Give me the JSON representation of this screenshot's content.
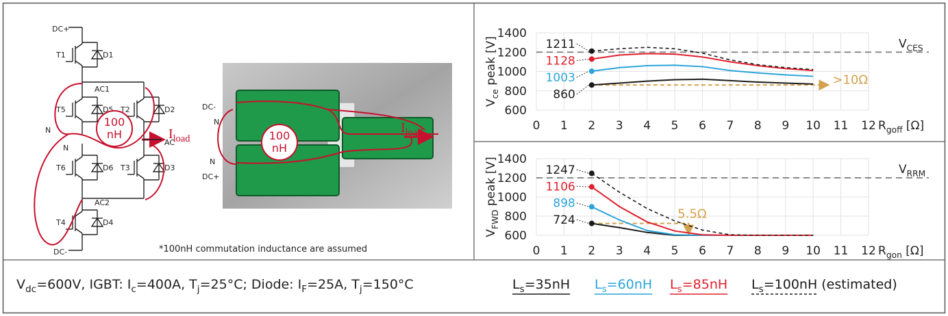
{
  "circuit": {
    "labels": [
      "DC+",
      "T1",
      "D1",
      "AC1",
      "T5",
      "D5",
      "T2",
      "D2",
      "N",
      "N",
      "T6",
      "D6",
      "T3",
      "D3",
      "AC2",
      "T4",
      "D4",
      "DC-",
      "AC"
    ],
    "inductance": [
      "100",
      "nH"
    ],
    "current": "Iload"
  },
  "photo": {
    "labels": [
      "DC-",
      "N",
      "N",
      "DC+"
    ],
    "inductance": [
      "100",
      "nH"
    ],
    "current": "Iload"
  },
  "note": "*100nH commutation inductance are assumed",
  "caption": "Vdc=600V, IGBT: Ic=400A, Tj=25°C; Diode: IF=25A, Tj=150°C",
  "chart_data": [
    {
      "type": "line",
      "y_label": "Vce peak [V]",
      "x_label": "Rgoff [Ω]",
      "xlim": [
        0,
        12
      ],
      "xticks": [
        0,
        1,
        2,
        3,
        4,
        5,
        6,
        7,
        8,
        9,
        10,
        11,
        12
      ],
      "ylim": [
        600,
        1400
      ],
      "yticks": [
        600,
        800,
        1000,
        1200,
        1400
      ],
      "grid": true,
      "reference": {
        "value": 1200,
        "label": "VCES"
      },
      "annotation": {
        "text": ">10Ω",
        "x": [
          2,
          10.5
        ],
        "y": 860
      },
      "x": [
        2,
        3,
        4,
        5,
        6,
        7,
        8,
        9,
        10
      ],
      "series": [
        {
          "name": "Ls=35nH",
          "color": "#1a1a1a",
          "values": [
            860,
            880,
            900,
            915,
            920,
            905,
            890,
            880,
            870
          ]
        },
        {
          "name": "Ls=60nH",
          "color": "#2aa4da",
          "values": [
            1003,
            1040,
            1060,
            1065,
            1050,
            1010,
            985,
            965,
            950
          ]
        },
        {
          "name": "Ls=85nH",
          "color": "#e11f2c",
          "values": [
            1128,
            1170,
            1185,
            1180,
            1150,
            1100,
            1060,
            1030,
            1010
          ]
        },
        {
          "name": "Ls=100nH (estimated)",
          "color": "#1a1a1a",
          "dashed": true,
          "values": [
            1211,
            1235,
            1250,
            1235,
            1190,
            1120,
            1070,
            1040,
            1020
          ]
        }
      ]
    },
    {
      "type": "line",
      "y_label": "VFWD peak [V]",
      "x_label": "Rgon [Ω]",
      "xlim": [
        0,
        12
      ],
      "xticks": [
        0,
        1,
        2,
        3,
        4,
        5,
        6,
        7,
        8,
        9,
        10,
        11,
        12
      ],
      "ylim": [
        600,
        1400
      ],
      "yticks": [
        600,
        800,
        1000,
        1200,
        1400
      ],
      "grid": true,
      "reference": {
        "value": 1200,
        "label": "VRRM"
      },
      "annotation": {
        "text": "5.5Ω",
        "x": [
          2,
          5.5
        ],
        "y": 724
      },
      "x": [
        2,
        3,
        4,
        5,
        6,
        7,
        8,
        9,
        10
      ],
      "series": [
        {
          "color": "#1a1a1a",
          "values": [
            724,
            680,
            630,
            600,
            600,
            600,
            600,
            600,
            600
          ]
        },
        {
          "color": "#2aa4da",
          "values": [
            898,
            760,
            650,
            605,
            600,
            600,
            600,
            600,
            600
          ]
        },
        {
          "color": "#e11f2c",
          "values": [
            1106,
            900,
            740,
            645,
            605,
            600,
            600,
            600,
            600
          ]
        },
        {
          "color": "#1a1a1a",
          "dashed": true,
          "values": [
            1247,
            1050,
            880,
            750,
            655,
            605,
            600,
            600,
            600
          ]
        }
      ]
    }
  ]
}
